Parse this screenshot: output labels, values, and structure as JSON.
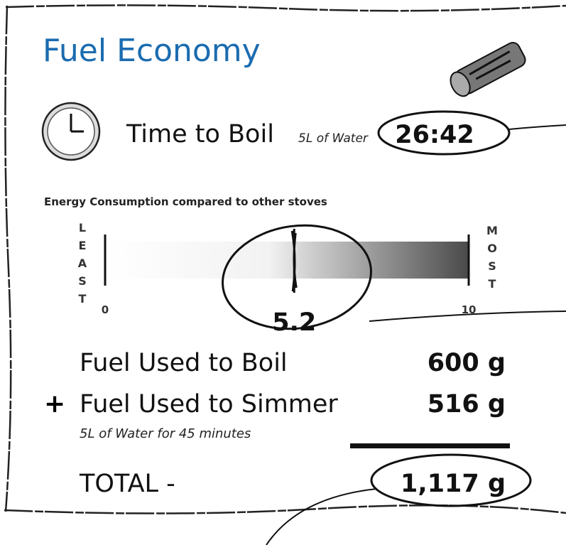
{
  "header": {
    "title": "Fuel Economy"
  },
  "boil_time": {
    "label": "Time to Boil",
    "note": "5L of Water",
    "value": "26:42"
  },
  "gauge": {
    "title": "Energy Consumption compared to other stoves",
    "low_label": "LEAST",
    "high_label": "MOST",
    "min": 0,
    "max": 10,
    "value": 5.2
  },
  "fuel": {
    "boil": {
      "label": "Fuel Used to Boil",
      "value": "600 g"
    },
    "simmer": {
      "operator": "+",
      "label": "Fuel Used to Simmer",
      "value": "516 g",
      "note": "5L of Water for 45 minutes"
    },
    "total": {
      "label": "TOTAL -",
      "value": "1,117 g"
    }
  }
}
